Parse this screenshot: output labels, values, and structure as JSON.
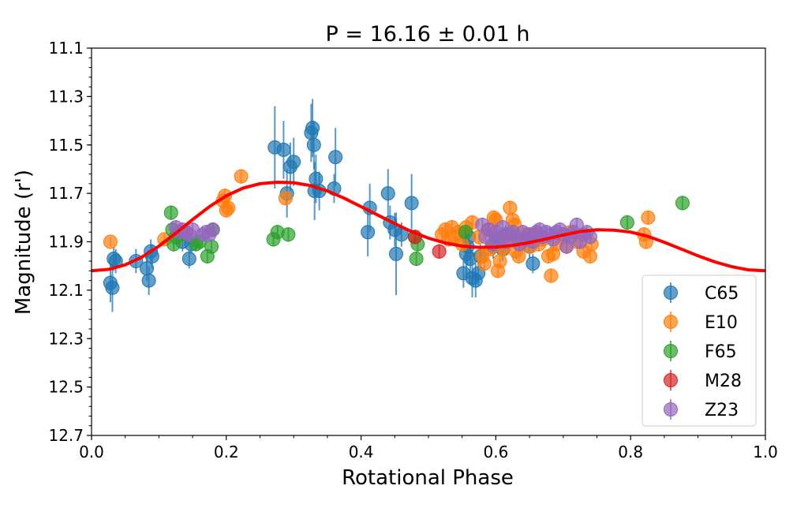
{
  "chart_data": {
    "type": "scatter",
    "title": "P = 16.16 ± 0.01 h",
    "xlabel": "Rotational Phase",
    "ylabel": "Magnitude (r')",
    "xlim": [
      0.0,
      1.0
    ],
    "ylim": [
      12.7,
      11.1
    ],
    "y_inverted": true,
    "x_ticks": [
      "0.0",
      "0.2",
      "0.4",
      "0.6",
      "0.8",
      "1.0"
    ],
    "y_ticks": [
      "11.1",
      "11.3",
      "11.5",
      "11.7",
      "11.9",
      "12.1",
      "12.3",
      "12.5",
      "12.7"
    ],
    "grid": false,
    "legend_position": "lower-right",
    "fit_curve": {
      "color": "#ff0000",
      "x": [
        0.0,
        0.025,
        0.05,
        0.075,
        0.1,
        0.125,
        0.15,
        0.175,
        0.2,
        0.225,
        0.25,
        0.275,
        0.3,
        0.325,
        0.35,
        0.375,
        0.4,
        0.425,
        0.45,
        0.475,
        0.5,
        0.525,
        0.55,
        0.575,
        0.6,
        0.625,
        0.65,
        0.675,
        0.7,
        0.725,
        0.75,
        0.775,
        0.8,
        0.825,
        0.85,
        0.875,
        0.9,
        0.925,
        0.95,
        0.975,
        1.0
      ],
      "y": [
        12.02,
        12.014,
        11.995,
        11.963,
        11.918,
        11.864,
        11.808,
        11.755,
        11.71,
        11.678,
        11.66,
        11.654,
        11.656,
        11.668,
        11.69,
        11.72,
        11.755,
        11.79,
        11.825,
        11.858,
        11.885,
        11.905,
        11.918,
        11.923,
        11.922,
        11.915,
        11.903,
        11.888,
        11.872,
        11.858,
        11.85,
        11.852,
        11.86,
        11.877,
        11.902,
        11.93,
        11.958,
        11.983,
        12.003,
        12.016,
        12.02
      ]
    },
    "series": [
      {
        "name": "C65",
        "color": "#1f77b4",
        "points": [
          [
            0.028,
            12.07,
            0.08
          ],
          [
            0.031,
            12.09,
            0.1
          ],
          [
            0.033,
            11.97,
            0.05
          ],
          [
            0.036,
            11.98,
            0.05
          ],
          [
            0.066,
            11.98,
            0.05
          ],
          [
            0.082,
            12.01,
            0.05
          ],
          [
            0.085,
            12.06,
            0.06
          ],
          [
            0.088,
            11.94,
            0.05
          ],
          [
            0.09,
            11.96,
            0.05
          ],
          [
            0.135,
            11.9,
            0.04
          ],
          [
            0.145,
            11.97,
            0.04
          ],
          [
            0.148,
            11.91,
            0.04
          ],
          [
            0.272,
            11.51,
            0.17
          ],
          [
            0.285,
            11.52,
            0.12
          ],
          [
            0.29,
            11.7,
            0.1
          ],
          [
            0.295,
            11.59,
            0.1
          ],
          [
            0.3,
            11.57,
            0.1
          ],
          [
            0.326,
            11.45,
            0.12
          ],
          [
            0.328,
            11.43,
            0.12
          ],
          [
            0.33,
            11.5,
            0.1
          ],
          [
            0.331,
            11.69,
            0.12
          ],
          [
            0.333,
            11.64,
            0.1
          ],
          [
            0.338,
            11.69,
            0.08
          ],
          [
            0.36,
            11.68,
            0.06
          ],
          [
            0.362,
            11.55,
            0.12
          ],
          [
            0.41,
            11.86,
            0.1
          ],
          [
            0.413,
            11.76,
            0.1
          ],
          [
            0.44,
            11.7,
            0.1
          ],
          [
            0.443,
            11.82,
            0.07
          ],
          [
            0.45,
            11.85,
            0.07
          ],
          [
            0.452,
            11.95,
            0.17
          ],
          [
            0.46,
            11.87,
            0.05
          ],
          [
            0.475,
            11.74,
            0.12
          ],
          [
            0.552,
            12.03,
            0.06
          ],
          [
            0.556,
            11.95,
            0.1
          ],
          [
            0.558,
            11.92,
            0.08
          ],
          [
            0.56,
            11.88,
            0.05
          ],
          [
            0.562,
            11.97,
            0.06
          ],
          [
            0.565,
            12.05,
            0.08
          ],
          [
            0.57,
            12.06,
            0.07
          ],
          [
            0.574,
            12.03,
            0.05
          ],
          [
            0.577,
            11.96,
            0.05
          ],
          [
            0.596,
            11.92,
            0.05
          ],
          [
            0.6,
            11.88,
            0.04
          ],
          [
            0.61,
            11.93,
            0.05
          ],
          [
            0.615,
            11.87,
            0.04
          ],
          [
            0.65,
            11.92,
            0.05
          ],
          [
            0.655,
            11.99,
            0.04
          ]
        ]
      },
      {
        "name": "E10",
        "color": "#ff7f0e",
        "points": [
          [
            0.028,
            11.9,
            0.02
          ],
          [
            0.108,
            11.89,
            0.02
          ],
          [
            0.195,
            11.73,
            0.03
          ],
          [
            0.198,
            11.71,
            0.03
          ],
          [
            0.2,
            11.77,
            0.03
          ],
          [
            0.203,
            11.76,
            0.03
          ],
          [
            0.222,
            11.63,
            0.03
          ],
          [
            0.288,
            11.72,
            0.03
          ],
          [
            0.52,
            11.87,
            0.03
          ],
          [
            0.525,
            11.85,
            0.03
          ],
          [
            0.53,
            11.89,
            0.03
          ],
          [
            0.535,
            11.84,
            0.03
          ],
          [
            0.54,
            11.88,
            0.03
          ],
          [
            0.545,
            11.86,
            0.03
          ],
          [
            0.55,
            11.91,
            0.03
          ],
          [
            0.556,
            11.84,
            0.03
          ],
          [
            0.565,
            11.82,
            0.03
          ],
          [
            0.575,
            11.88,
            0.03
          ],
          [
            0.58,
            11.96,
            0.03
          ],
          [
            0.583,
            11.99,
            0.03
          ],
          [
            0.588,
            11.85,
            0.03
          ],
          [
            0.592,
            11.93,
            0.03
          ],
          [
            0.597,
            11.8,
            0.03
          ],
          [
            0.6,
            11.81,
            0.03
          ],
          [
            0.603,
            12.02,
            0.03
          ],
          [
            0.606,
            11.98,
            0.03
          ],
          [
            0.612,
            11.93,
            0.03
          ],
          [
            0.618,
            11.89,
            0.03
          ],
          [
            0.621,
            11.76,
            0.03
          ],
          [
            0.625,
            11.81,
            0.03
          ],
          [
            0.628,
            11.83,
            0.03
          ],
          [
            0.63,
            11.94,
            0.03
          ],
          [
            0.634,
            11.96,
            0.03
          ],
          [
            0.64,
            11.9,
            0.03
          ],
          [
            0.645,
            11.87,
            0.03
          ],
          [
            0.651,
            11.92,
            0.03
          ],
          [
            0.658,
            11.87,
            0.03
          ],
          [
            0.664,
            11.91,
            0.03
          ],
          [
            0.67,
            11.89,
            0.03
          ],
          [
            0.678,
            11.96,
            0.03
          ],
          [
            0.682,
            12.04,
            0.03
          ],
          [
            0.685,
            11.95,
            0.03
          ],
          [
            0.69,
            11.91,
            0.03
          ],
          [
            0.7,
            11.88,
            0.03
          ],
          [
            0.705,
            11.92,
            0.03
          ],
          [
            0.71,
            11.86,
            0.03
          ],
          [
            0.72,
            11.9,
            0.03
          ],
          [
            0.73,
            11.94,
            0.03
          ],
          [
            0.74,
            11.96,
            0.03
          ],
          [
            0.742,
            11.91,
            0.03
          ],
          [
            0.82,
            11.87,
            0.03
          ],
          [
            0.823,
            11.9,
            0.03
          ],
          [
            0.826,
            11.8,
            0.03
          ]
        ]
      },
      {
        "name": "F65",
        "color": "#2ca02c",
        "points": [
          [
            0.118,
            11.78,
            0.03
          ],
          [
            0.12,
            11.85,
            0.03
          ],
          [
            0.122,
            11.91,
            0.03
          ],
          [
            0.125,
            11.88,
            0.03
          ],
          [
            0.135,
            11.87,
            0.03
          ],
          [
            0.155,
            11.91,
            0.03
          ],
          [
            0.16,
            11.9,
            0.03
          ],
          [
            0.172,
            11.96,
            0.03
          ],
          [
            0.178,
            11.92,
            0.03
          ],
          [
            0.18,
            11.85,
            0.03
          ],
          [
            0.27,
            11.89,
            0.03
          ],
          [
            0.276,
            11.86,
            0.03
          ],
          [
            0.292,
            11.87,
            0.03
          ],
          [
            0.48,
            11.88,
            0.03
          ],
          [
            0.482,
            11.97,
            0.03
          ],
          [
            0.484,
            11.91,
            0.03
          ],
          [
            0.555,
            11.86,
            0.03
          ],
          [
            0.795,
            11.82,
            0.03
          ],
          [
            0.877,
            11.74,
            0.03
          ]
        ]
      },
      {
        "name": "M28",
        "color": "#d62728",
        "points": [
          [
            0.48,
            11.88,
            0.03
          ],
          [
            0.516,
            11.94,
            0.03
          ]
        ]
      },
      {
        "name": "Z23",
        "color": "#9467bd",
        "points": [
          [
            0.125,
            11.84,
            0.03
          ],
          [
            0.13,
            11.86,
            0.03
          ],
          [
            0.135,
            11.85,
            0.03
          ],
          [
            0.14,
            11.86,
            0.03
          ],
          [
            0.145,
            11.87,
            0.03
          ],
          [
            0.15,
            11.85,
            0.03
          ],
          [
            0.165,
            11.87,
            0.03
          ],
          [
            0.17,
            11.86,
            0.03
          ],
          [
            0.175,
            11.87,
            0.03
          ],
          [
            0.18,
            11.85,
            0.03
          ],
          [
            0.58,
            11.83,
            0.03
          ],
          [
            0.585,
            11.88,
            0.03
          ],
          [
            0.59,
            11.85,
            0.03
          ],
          [
            0.595,
            11.91,
            0.03
          ],
          [
            0.6,
            11.86,
            0.03
          ],
          [
            0.605,
            11.89,
            0.03
          ],
          [
            0.61,
            11.84,
            0.03
          ],
          [
            0.615,
            11.9,
            0.03
          ],
          [
            0.62,
            11.87,
            0.03
          ],
          [
            0.625,
            11.86,
            0.03
          ],
          [
            0.63,
            11.88,
            0.03
          ],
          [
            0.635,
            11.91,
            0.03
          ],
          [
            0.64,
            11.86,
            0.03
          ],
          [
            0.645,
            11.89,
            0.03
          ],
          [
            0.65,
            11.87,
            0.03
          ],
          [
            0.655,
            11.9,
            0.03
          ],
          [
            0.66,
            11.86,
            0.03
          ],
          [
            0.665,
            11.85,
            0.03
          ],
          [
            0.67,
            11.88,
            0.03
          ],
          [
            0.675,
            11.86,
            0.03
          ],
          [
            0.68,
            11.87,
            0.03
          ],
          [
            0.685,
            11.89,
            0.03
          ],
          [
            0.69,
            11.86,
            0.03
          ],
          [
            0.695,
            11.85,
            0.03
          ],
          [
            0.7,
            11.87,
            0.03
          ],
          [
            0.705,
            11.92,
            0.03
          ],
          [
            0.71,
            11.88,
            0.03
          ],
          [
            0.715,
            11.86,
            0.03
          ],
          [
            0.72,
            11.83,
            0.03
          ],
          [
            0.725,
            11.9,
            0.03
          ],
          [
            0.73,
            11.87,
            0.03
          ],
          [
            0.735,
            11.86,
            0.03
          ],
          [
            0.74,
            11.88,
            0.03
          ]
        ]
      }
    ]
  }
}
